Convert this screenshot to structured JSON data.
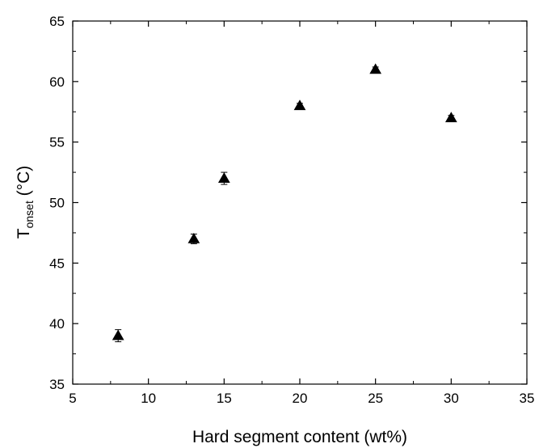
{
  "chart_data": {
    "type": "scatter",
    "xlabel": "Hard segment content (wt%)",
    "ylabel": {
      "main": "T",
      "subscript": "onset",
      "unit": " (°C)"
    },
    "xlim": [
      5,
      35
    ],
    "ylim": [
      35,
      65
    ],
    "xticks": [
      5,
      10,
      15,
      20,
      25,
      30,
      35
    ],
    "yticks": [
      35,
      40,
      45,
      50,
      55,
      60,
      65
    ],
    "x_minor_step": 2.5,
    "y_minor_step": 2.5,
    "grid": false,
    "legend": "none",
    "marker": "filled-triangle",
    "marker_color": "#000000",
    "points": [
      {
        "x": 8,
        "y": 39,
        "err": 0.5
      },
      {
        "x": 13,
        "y": 47,
        "err": 0.4
      },
      {
        "x": 15,
        "y": 52,
        "err": 0.5
      },
      {
        "x": 20,
        "y": 58,
        "err": 0.2
      },
      {
        "x": 25,
        "y": 61,
        "err": 0.2
      },
      {
        "x": 30,
        "y": 57,
        "err": 0.2
      }
    ]
  }
}
